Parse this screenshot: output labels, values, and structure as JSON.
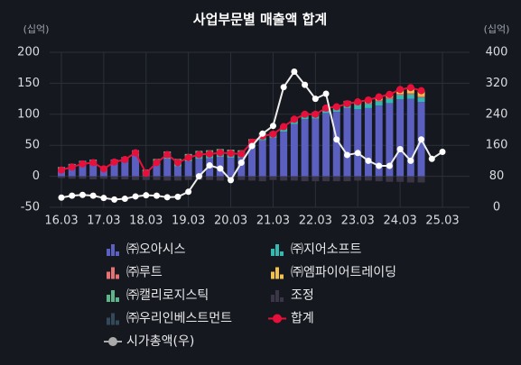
{
  "chart_data": {
    "type": "bar",
    "stacked": true,
    "title": "사업부문별 매출액 합계",
    "y_label": "(십억)",
    "y2_label": "(십억)",
    "categories": [
      "16.03",
      null,
      null,
      null,
      "17.03",
      null,
      null,
      null,
      "18.03",
      null,
      null,
      null,
      "19.03",
      null,
      null,
      null,
      "20.03",
      null,
      null,
      null,
      "21.03",
      null,
      null,
      null,
      "22.03",
      null,
      null,
      null,
      "23.03",
      null,
      null,
      null,
      "24.03",
      null,
      null,
      null,
      "25.03"
    ],
    "ylim": [
      -50,
      200
    ],
    "yticks": [
      -50,
      0,
      50,
      100,
      150,
      200
    ],
    "y2lim": [
      0,
      400
    ],
    "y2ticks": [
      0,
      80,
      160,
      240,
      320,
      400
    ],
    "grid": true,
    "series": [
      {
        "name": "㈜오아시스",
        "type": "bar",
        "color": "#5a5fc0",
        "values": [
          9,
          14,
          18,
          20,
          10,
          20,
          24,
          34,
          4,
          18,
          28,
          16,
          24,
          28,
          29,
          31,
          30,
          30,
          48,
          58,
          62,
          72,
          84,
          92,
          93,
          102,
          104,
          110,
          108,
          110,
          114,
          118,
          124,
          125,
          120,
          null,
          null
        ]
      },
      {
        "name": "㈜지어소프트",
        "type": "bar",
        "color": "#35b8b0",
        "values": [
          6,
          6,
          7,
          7,
          6,
          7,
          7,
          8,
          7,
          7,
          8,
          8,
          8,
          9,
          9,
          9,
          9,
          8,
          8,
          8,
          8,
          8,
          8,
          8,
          8,
          8,
          8,
          7,
          7,
          7,
          7,
          7,
          7,
          7,
          7,
          null,
          null
        ]
      },
      {
        "name": "㈜루트",
        "type": "bar",
        "color": "#e57373",
        "values": [
          null,
          null,
          null,
          null,
          null,
          null,
          null,
          null,
          null,
          null,
          null,
          null,
          null,
          null,
          null,
          null,
          null,
          null,
          null,
          null,
          1,
          1,
          2,
          2,
          2,
          2,
          2,
          2,
          2,
          2,
          2,
          2,
          2,
          2,
          2,
          null,
          null
        ]
      },
      {
        "name": "㈜엠파이어트레이딩",
        "type": "bar",
        "color": "#f2c14e",
        "values": [
          null,
          null,
          null,
          null,
          null,
          null,
          null,
          null,
          null,
          null,
          null,
          null,
          null,
          null,
          null,
          null,
          null,
          null,
          null,
          null,
          null,
          null,
          null,
          null,
          null,
          null,
          null,
          2,
          3,
          4,
          5,
          6,
          8,
          9,
          8,
          null,
          null
        ]
      },
      {
        "name": "㈜캘리로지스틱",
        "type": "bar",
        "color": "#5fb58a",
        "values": [
          null,
          null,
          null,
          null,
          null,
          null,
          null,
          null,
          null,
          3,
          4,
          4,
          4,
          4,
          4,
          4,
          4,
          4,
          4,
          4,
          null,
          null,
          null,
          null,
          null,
          null,
          null,
          null,
          null,
          null,
          null,
          null,
          null,
          null,
          null,
          null,
          null
        ]
      },
      {
        "name": "조정",
        "type": "bar",
        "color": "#3a3547",
        "values": [
          -3,
          -4,
          -4,
          -5,
          -4,
          -5,
          -5,
          -6,
          -6,
          -6,
          -7,
          -7,
          -6,
          -6,
          -6,
          -7,
          -6,
          -6,
          -7,
          -8,
          -6,
          -7,
          -7,
          -8,
          -8,
          -8,
          -8,
          -8,
          -7,
          -7,
          -8,
          -9,
          -9,
          -10,
          -10,
          null,
          null
        ]
      },
      {
        "name": "㈜우리인베스트먼트",
        "type": "bar",
        "color": "#33495a",
        "values": [
          null,
          null,
          null,
          null,
          null,
          null,
          null,
          null,
          null,
          null,
          null,
          null,
          null,
          null,
          null,
          null,
          null,
          null,
          null,
          null,
          1,
          1,
          1,
          1,
          1,
          1,
          1,
          1,
          1,
          1,
          1,
          1,
          1,
          1,
          1,
          null,
          null
        ]
      },
      {
        "name": "합계",
        "type": "line",
        "color": "#e8103a",
        "values": [
          10,
          15,
          20,
          22,
          12,
          23,
          27,
          38,
          5,
          22,
          35,
          22,
          30,
          35,
          36,
          38,
          37,
          36,
          55,
          65,
          68,
          80,
          92,
          100,
          100,
          110,
          112,
          117,
          120,
          123,
          128,
          132,
          140,
          143,
          138,
          null,
          null
        ]
      },
      {
        "name": "시가총액(우)",
        "type": "line",
        "axis": "y2",
        "color": "#eeeeee",
        "values": [
          25,
          30,
          32,
          30,
          24,
          20,
          22,
          28,
          31,
          30,
          26,
          27,
          40,
          80,
          108,
          100,
          70,
          115,
          158,
          190,
          210,
          310,
          350,
          316,
          280,
          293,
          175,
          135,
          140,
          120,
          107,
          107,
          150,
          120,
          175,
          125,
          143
        ]
      }
    ]
  }
}
